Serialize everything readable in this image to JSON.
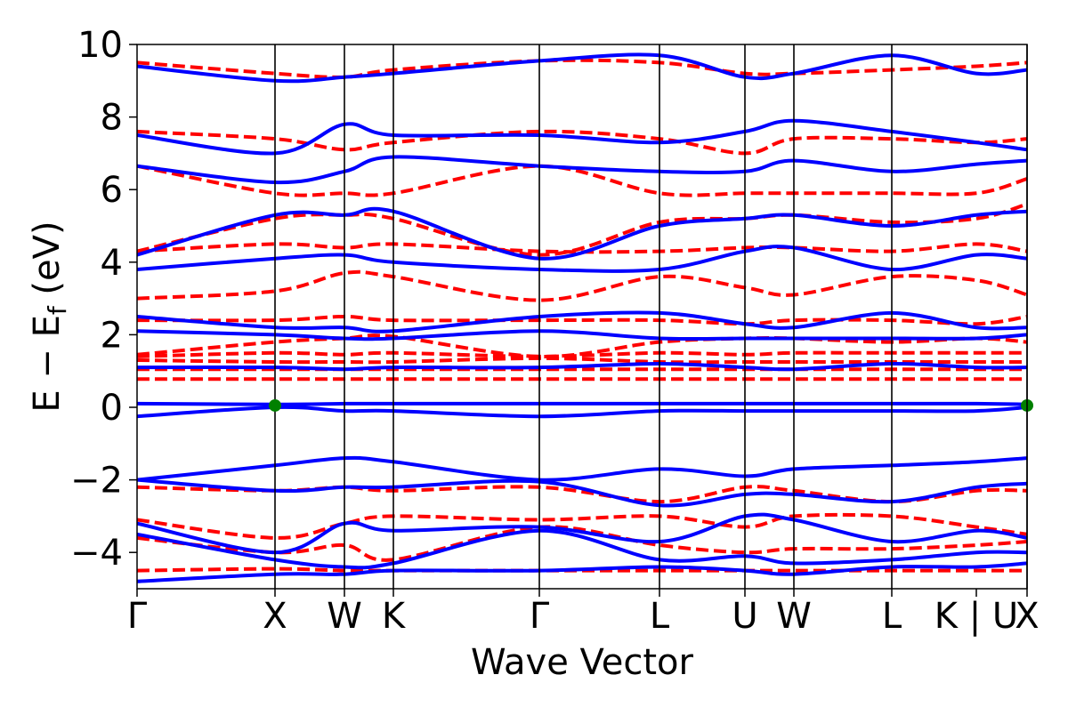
{
  "chart_data": {
    "type": "line",
    "title": "",
    "xlabel": "Wave Vector",
    "ylabel": "E − E",
    "ylabel_subscript": "f",
    "ylabel_unit": " (eV)",
    "xlim": [
      0,
      1000
    ],
    "ylim": [
      -5,
      10
    ],
    "yticks": [
      -4,
      -2,
      0,
      2,
      4,
      6,
      8,
      10
    ],
    "ytick_labels": [
      "−4",
      "−2",
      "0",
      "2",
      "4",
      "6",
      "8",
      "10"
    ],
    "kpoints": [
      {
        "label": "Γ",
        "x": 0
      },
      {
        "label": "X",
        "x": 155
      },
      {
        "label": "W",
        "x": 233
      },
      {
        "label": "K",
        "x": 288
      },
      {
        "label": "Γ",
        "x": 452
      },
      {
        "label": "L",
        "x": 587
      },
      {
        "label": "U",
        "x": 683
      },
      {
        "label": "W",
        "x": 738
      },
      {
        "label": "L",
        "x": 848
      },
      {
        "label": "K | U",
        "x": 943
      },
      {
        "label": "X",
        "x": 1000
      }
    ],
    "kpoint_lines": [
      155,
      233,
      288,
      452,
      587,
      683,
      738,
      848,
      1000
    ],
    "grid": false,
    "legend": "none",
    "series": [
      {
        "style": "dashed",
        "color": "#ff0000",
        "bands": [
          {
            "x": [
              0,
              155,
              233,
              288,
              452,
              587,
              683,
              738,
              848,
              943,
              1000
            ],
            "y": [
              0.78,
              0.78,
              0.78,
              0.78,
              0.78,
              0.78,
              0.78,
              0.78,
              0.78,
              0.78,
              0.78
            ]
          },
          {
            "x": [
              0,
              155,
              233,
              288,
              452,
              587,
              683,
              738,
              848,
              943,
              1000
            ],
            "y": [
              1.05,
              1.05,
              1.05,
              1.05,
              1.05,
              1.05,
              1.05,
              1.05,
              1.05,
              1.05,
              1.05
            ]
          },
          {
            "x": [
              0,
              155,
              233,
              288,
              452,
              587,
              683,
              738,
              848,
              943,
              1000
            ],
            "y": [
              1.3,
              1.25,
              1.25,
              1.25,
              1.35,
              1.25,
              1.25,
              1.25,
              1.25,
              1.25,
              1.25
            ]
          },
          {
            "x": [
              0,
              155,
              233,
              288,
              452,
              587,
              683,
              738,
              848,
              943,
              1000
            ],
            "y": [
              1.4,
              1.5,
              1.45,
              1.5,
              1.4,
              1.5,
              1.45,
              1.5,
              1.5,
              1.5,
              1.5
            ]
          },
          {
            "x": [
              0,
              155,
              233,
              288,
              452,
              587,
              683,
              738,
              848,
              943,
              1000
            ],
            "y": [
              1.45,
              1.8,
              1.9,
              1.95,
              1.4,
              1.8,
              1.9,
              1.9,
              1.8,
              1.9,
              1.8
            ]
          },
          {
            "x": [
              0,
              155,
              233,
              288,
              452,
              587,
              683,
              738,
              848,
              943,
              1000
            ],
            "y": [
              2.4,
              2.4,
              2.5,
              2.4,
              2.4,
              2.4,
              2.3,
              2.4,
              2.4,
              2.3,
              2.5
            ]
          },
          {
            "x": [
              0,
              155,
              233,
              288,
              452,
              587,
              683,
              738,
              848,
              943,
              1000
            ],
            "y": [
              3.0,
              3.2,
              3.7,
              3.6,
              2.95,
              3.6,
              3.3,
              3.1,
              3.6,
              3.5,
              3.1
            ]
          },
          {
            "x": [
              0,
              155,
              233,
              288,
              452,
              587,
              683,
              738,
              848,
              943,
              1000
            ],
            "y": [
              4.3,
              4.5,
              4.4,
              4.5,
              4.3,
              4.3,
              4.4,
              4.4,
              4.3,
              4.5,
              4.3
            ]
          },
          {
            "x": [
              0,
              155,
              233,
              288,
              452,
              587,
              683,
              738,
              848,
              943,
              1000
            ],
            "y": [
              4.3,
              5.2,
              5.3,
              5.2,
              4.2,
              5.1,
              5.2,
              5.3,
              5.1,
              5.2,
              5.6
            ]
          },
          {
            "x": [
              0,
              155,
              233,
              288,
              452,
              587,
              683,
              738,
              848,
              943,
              1000
            ],
            "y": [
              6.65,
              5.9,
              5.9,
              5.9,
              6.65,
              5.9,
              5.9,
              5.9,
              5.9,
              5.9,
              6.3
            ]
          },
          {
            "x": [
              0,
              155,
              233,
              288,
              452,
              587,
              683,
              738,
              848,
              943,
              1000
            ],
            "y": [
              7.6,
              7.4,
              7.1,
              7.3,
              7.6,
              7.4,
              7.0,
              7.4,
              7.4,
              7.3,
              7.4
            ]
          },
          {
            "x": [
              0,
              155,
              233,
              288,
              452,
              587,
              683,
              738,
              848,
              943,
              1000
            ],
            "y": [
              9.5,
              9.2,
              9.1,
              9.3,
              9.55,
              9.5,
              9.2,
              9.2,
              9.3,
              9.4,
              9.5
            ]
          },
          {
            "x": [
              0,
              155,
              233,
              288,
              452,
              587,
              683,
              738,
              848,
              943,
              1000
            ],
            "y": [
              -2.2,
              -2.3,
              -2.2,
              -2.3,
              -2.2,
              -2.6,
              -2.2,
              -2.3,
              -2.6,
              -2.3,
              -2.3
            ]
          },
          {
            "x": [
              0,
              155,
              233,
              288,
              452,
              587,
              683,
              738,
              848,
              943,
              1000
            ],
            "y": [
              -3.1,
              -3.6,
              -3.2,
              -3.0,
              -3.1,
              -3.0,
              -3.3,
              -3.0,
              -3.0,
              -3.3,
              -3.5
            ]
          },
          {
            "x": [
              0,
              155,
              233,
              288,
              452,
              587,
              683,
              738,
              848,
              943,
              1000
            ],
            "y": [
              -3.6,
              -4.0,
              -3.8,
              -4.2,
              -3.3,
              -3.8,
              -4.0,
              -3.9,
              -3.9,
              -3.8,
              -3.7
            ]
          },
          {
            "x": [
              0,
              155,
              233,
              288,
              452,
              587,
              683,
              738,
              848,
              943,
              1000
            ],
            "y": [
              -4.5,
              -4.45,
              -4.5,
              -4.5,
              -4.5,
              -4.5,
              -4.5,
              -4.5,
              -4.5,
              -4.5,
              -4.5
            ]
          }
        ]
      },
      {
        "style": "solid",
        "color": "#0000ff",
        "bands": [
          {
            "x": [
              0,
              155,
              233,
              288,
              452,
              587,
              683,
              738,
              848,
              943,
              1000
            ],
            "y": [
              0.1,
              0.08,
              0.1,
              0.1,
              0.1,
              0.1,
              0.1,
              0.1,
              0.1,
              0.1,
              0.08
            ]
          },
          {
            "x": [
              0,
              155,
              233,
              288,
              452,
              587,
              683,
              738,
              848,
              943,
              1000
            ],
            "y": [
              -0.25,
              0.0,
              -0.1,
              -0.1,
              -0.25,
              -0.1,
              -0.1,
              -0.1,
              -0.1,
              -0.1,
              0.0
            ]
          },
          {
            "x": [
              0,
              155,
              233,
              288,
              452,
              587,
              683,
              738,
              848,
              943,
              1000
            ],
            "y": [
              1.1,
              1.1,
              1.05,
              1.1,
              1.1,
              1.2,
              1.1,
              1.05,
              1.2,
              1.1,
              1.1
            ]
          },
          {
            "x": [
              0,
              155,
              233,
              288,
              452,
              587,
              683,
              738,
              848,
              943,
              1000
            ],
            "y": [
              2.1,
              2.0,
              1.9,
              1.9,
              2.1,
              1.9,
              1.9,
              1.9,
              1.9,
              1.9,
              2.0
            ]
          },
          {
            "x": [
              0,
              155,
              233,
              288,
              452,
              587,
              683,
              738,
              848,
              943,
              1000
            ],
            "y": [
              2.5,
              2.2,
              2.2,
              2.1,
              2.5,
              2.6,
              2.3,
              2.2,
              2.6,
              2.2,
              2.2
            ]
          },
          {
            "x": [
              0,
              155,
              233,
              288,
              452,
              587,
              683,
              738,
              848,
              943,
              1000
            ],
            "y": [
              3.8,
              4.1,
              4.2,
              4.0,
              3.8,
              3.8,
              4.3,
              4.4,
              3.8,
              4.2,
              4.1
            ]
          },
          {
            "x": [
              0,
              155,
              233,
              288,
              452,
              587,
              683,
              738,
              848,
              943,
              1000
            ],
            "y": [
              4.2,
              5.3,
              5.3,
              5.4,
              4.1,
              5.0,
              5.2,
              5.3,
              5.0,
              5.3,
              5.4
            ]
          },
          {
            "x": [
              0,
              155,
              233,
              288,
              452,
              587,
              683,
              738,
              848,
              943,
              1000
            ],
            "y": [
              6.65,
              6.2,
              6.5,
              6.9,
              6.65,
              6.5,
              6.5,
              6.8,
              6.5,
              6.7,
              6.8
            ]
          },
          {
            "x": [
              0,
              155,
              233,
              288,
              452,
              587,
              683,
              738,
              848,
              943,
              1000
            ],
            "y": [
              7.5,
              7.0,
              7.8,
              7.5,
              7.5,
              7.3,
              7.6,
              7.9,
              7.6,
              7.3,
              7.1
            ]
          },
          {
            "x": [
              0,
              155,
              233,
              288,
              452,
              587,
              683,
              738,
              848,
              943,
              1000
            ],
            "y": [
              9.4,
              9.0,
              9.1,
              9.2,
              9.55,
              9.7,
              9.1,
              9.2,
              9.7,
              9.2,
              9.3
            ]
          },
          {
            "x": [
              0,
              155,
              233,
              288,
              452,
              587,
              683,
              738,
              848,
              943,
              1000
            ],
            "y": [
              -2.0,
              -1.6,
              -1.4,
              -1.5,
              -2.0,
              -1.7,
              -1.9,
              -1.7,
              -1.6,
              -1.5,
              -1.4
            ]
          },
          {
            "x": [
              0,
              155,
              233,
              288,
              452,
              587,
              683,
              738,
              848,
              943,
              1000
            ],
            "y": [
              -2.0,
              -2.3,
              -2.2,
              -2.2,
              -2.05,
              -2.7,
              -2.4,
              -2.4,
              -2.6,
              -2.2,
              -2.1
            ]
          },
          {
            "x": [
              0,
              155,
              233,
              288,
              452,
              587,
              683,
              738,
              848,
              943,
              1000
            ],
            "y": [
              -3.2,
              -4.0,
              -3.2,
              -3.4,
              -3.3,
              -3.7,
              -3.0,
              -3.1,
              -3.7,
              -3.4,
              -3.6
            ]
          },
          {
            "x": [
              0,
              155,
              233,
              288,
              452,
              587,
              683,
              738,
              848,
              943,
              1000
            ],
            "y": [
              -3.5,
              -4.2,
              -4.4,
              -4.3,
              -3.4,
              -4.2,
              -4.1,
              -4.3,
              -4.2,
              -4.0,
              -4.0
            ]
          },
          {
            "x": [
              0,
              155,
              233,
              288,
              452,
              587,
              683,
              738,
              848,
              943,
              1000
            ],
            "y": [
              -4.8,
              -4.6,
              -4.6,
              -4.5,
              -4.5,
              -4.4,
              -4.5,
              -4.6,
              -4.4,
              -4.4,
              -4.3
            ]
          }
        ]
      }
    ],
    "markers": [
      {
        "x": 155,
        "y": 0.05,
        "color": "#008000"
      },
      {
        "x": 1000,
        "y": 0.05,
        "color": "#008000"
      }
    ]
  }
}
